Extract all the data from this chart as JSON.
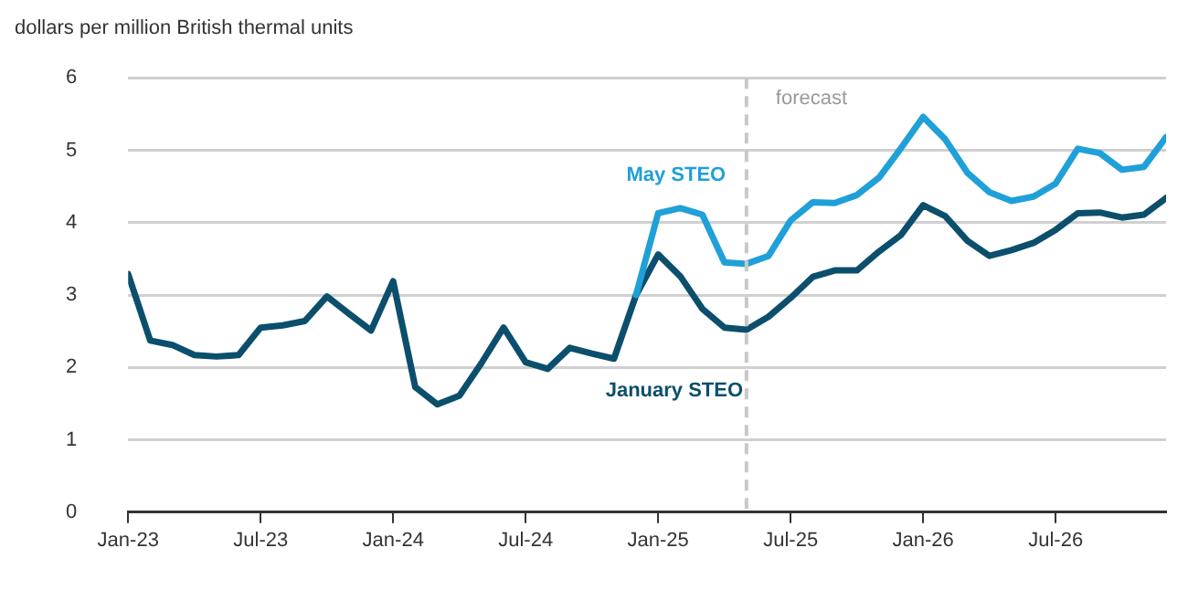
{
  "chart_data": {
    "type": "line",
    "ylabel": "dollars per million British thermal units",
    "x": [
      "2023-01",
      "2023-02",
      "2023-03",
      "2023-04",
      "2023-05",
      "2023-06",
      "2023-07",
      "2023-08",
      "2023-09",
      "2023-10",
      "2023-11",
      "2023-12",
      "2024-01",
      "2024-02",
      "2024-03",
      "2024-04",
      "2024-05",
      "2024-06",
      "2024-07",
      "2024-08",
      "2024-09",
      "2024-10",
      "2024-11",
      "2024-12",
      "2025-01",
      "2025-02",
      "2025-03",
      "2025-04",
      "2025-05",
      "2025-06",
      "2025-07",
      "2025-08",
      "2025-09",
      "2025-10",
      "2025-11",
      "2025-12",
      "2026-01",
      "2026-02",
      "2026-03",
      "2026-04",
      "2026-05",
      "2026-06",
      "2026-07",
      "2026-08",
      "2026-09",
      "2026-10",
      "2026-11",
      "2026-12"
    ],
    "series": [
      {
        "name": "May STEO",
        "color": "#1fa0d8",
        "values": [
          null,
          null,
          null,
          null,
          null,
          null,
          null,
          null,
          null,
          null,
          null,
          null,
          null,
          null,
          null,
          null,
          null,
          null,
          null,
          null,
          null,
          null,
          null,
          3.0,
          4.13,
          4.2,
          4.11,
          3.45,
          3.43,
          3.54,
          4.03,
          4.28,
          4.27,
          4.38,
          4.62,
          5.03,
          5.46,
          5.15,
          4.69,
          4.42,
          4.3,
          4.36,
          4.54,
          5.02,
          4.96,
          4.73,
          4.77,
          5.18
        ]
      },
      {
        "name": "January STEO",
        "color": "#0b4f6c",
        "values": [
          3.29,
          2.37,
          2.31,
          2.17,
          2.15,
          2.17,
          2.55,
          2.58,
          2.64,
          2.98,
          2.74,
          2.51,
          3.19,
          1.73,
          1.49,
          1.61,
          2.06,
          2.55,
          2.07,
          1.98,
          2.27,
          2.19,
          2.12,
          3.0,
          3.56,
          3.26,
          2.81,
          2.55,
          2.52,
          2.7,
          2.96,
          3.25,
          3.34,
          3.34,
          3.6,
          3.83,
          4.24,
          4.09,
          3.75,
          3.54,
          3.62,
          3.72,
          3.9,
          4.13,
          4.14,
          4.07,
          4.11,
          4.34
        ]
      }
    ],
    "xlim": [
      "2023-01",
      "2026-12"
    ],
    "xticks": [
      {
        "value": "2023-01",
        "label": "Jan-23"
      },
      {
        "value": "2023-07",
        "label": "Jul-23"
      },
      {
        "value": "2024-01",
        "label": "Jan-24"
      },
      {
        "value": "2024-07",
        "label": "Jul-24"
      },
      {
        "value": "2025-01",
        "label": "Jan-25"
      },
      {
        "value": "2025-07",
        "label": "Jul-25"
      },
      {
        "value": "2026-01",
        "label": "Jan-26"
      },
      {
        "value": "2026-07",
        "label": "Jul-26"
      }
    ],
    "ylim": [
      0,
      6
    ],
    "yticks": [
      0,
      1,
      2,
      3,
      4,
      5,
      6
    ],
    "ref_lines": [
      {
        "axis": "x",
        "value": "2025-05",
        "label": "forecast",
        "color": "#c8c8c8",
        "line_style": "dashed"
      }
    ],
    "grid": "y",
    "legend": false,
    "marker": "none",
    "line_style": "solid"
  }
}
